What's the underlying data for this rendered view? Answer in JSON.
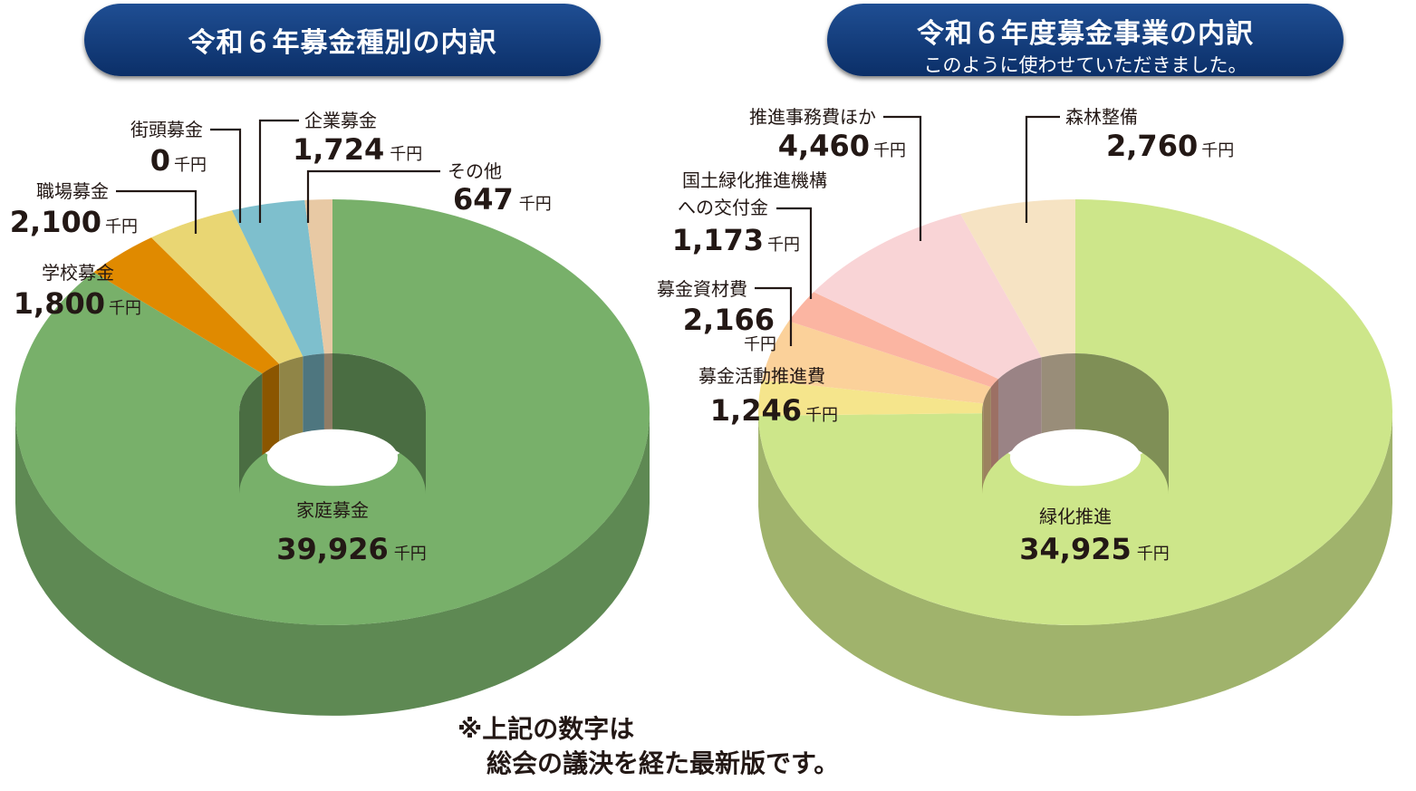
{
  "unit": "千円",
  "footnote": {
    "line1": "※上記の数字は",
    "line2": "総会の議決を経た最新版です。"
  },
  "chart_data": [
    {
      "type": "pie",
      "title": "令和６年募金種別の内訳",
      "subtitle": "",
      "slices": [
        {
          "label": "家庭募金",
          "value": 39926,
          "color": "#78b06a"
        },
        {
          "label": "学校募金",
          "value": 1800,
          "color": "#e08a00"
        },
        {
          "label": "職場募金",
          "value": 2100,
          "color": "#e9d673"
        },
        {
          "label": "街頭募金",
          "value": 0,
          "color": "#c7cf9a"
        },
        {
          "label": "企業募金",
          "value": 1724,
          "color": "#7ebfcd"
        },
        {
          "label": "その他",
          "value": 647,
          "color": "#e8c9a4"
        }
      ],
      "value_labels": [
        "39,926",
        "1,800",
        "2,100",
        "0",
        "1,724",
        "647"
      ]
    },
    {
      "type": "pie",
      "title": "令和６年度募金事業の内訳",
      "subtitle": "このように使わせていただきました。",
      "slices": [
        {
          "label": "緑化推進",
          "value": 34925,
          "color": "#cde68a"
        },
        {
          "label": "募金活動推進費",
          "value": 1246,
          "color": "#f5e58c"
        },
        {
          "label": "募金資材費",
          "value": 2166,
          "color": "#fbd19a"
        },
        {
          "label": "国土緑化推進機構への交付金",
          "value": 1173,
          "color": "#fbb5a2"
        },
        {
          "label": "推進事務費ほか",
          "value": 4460,
          "color": "#f9d4d6"
        },
        {
          "label": "森林整備",
          "value": 2760,
          "color": "#f6e3c3"
        }
      ],
      "value_labels": [
        "34,925",
        "1,246",
        "2,166",
        "1,173",
        "4,460",
        "2,760"
      ]
    }
  ]
}
